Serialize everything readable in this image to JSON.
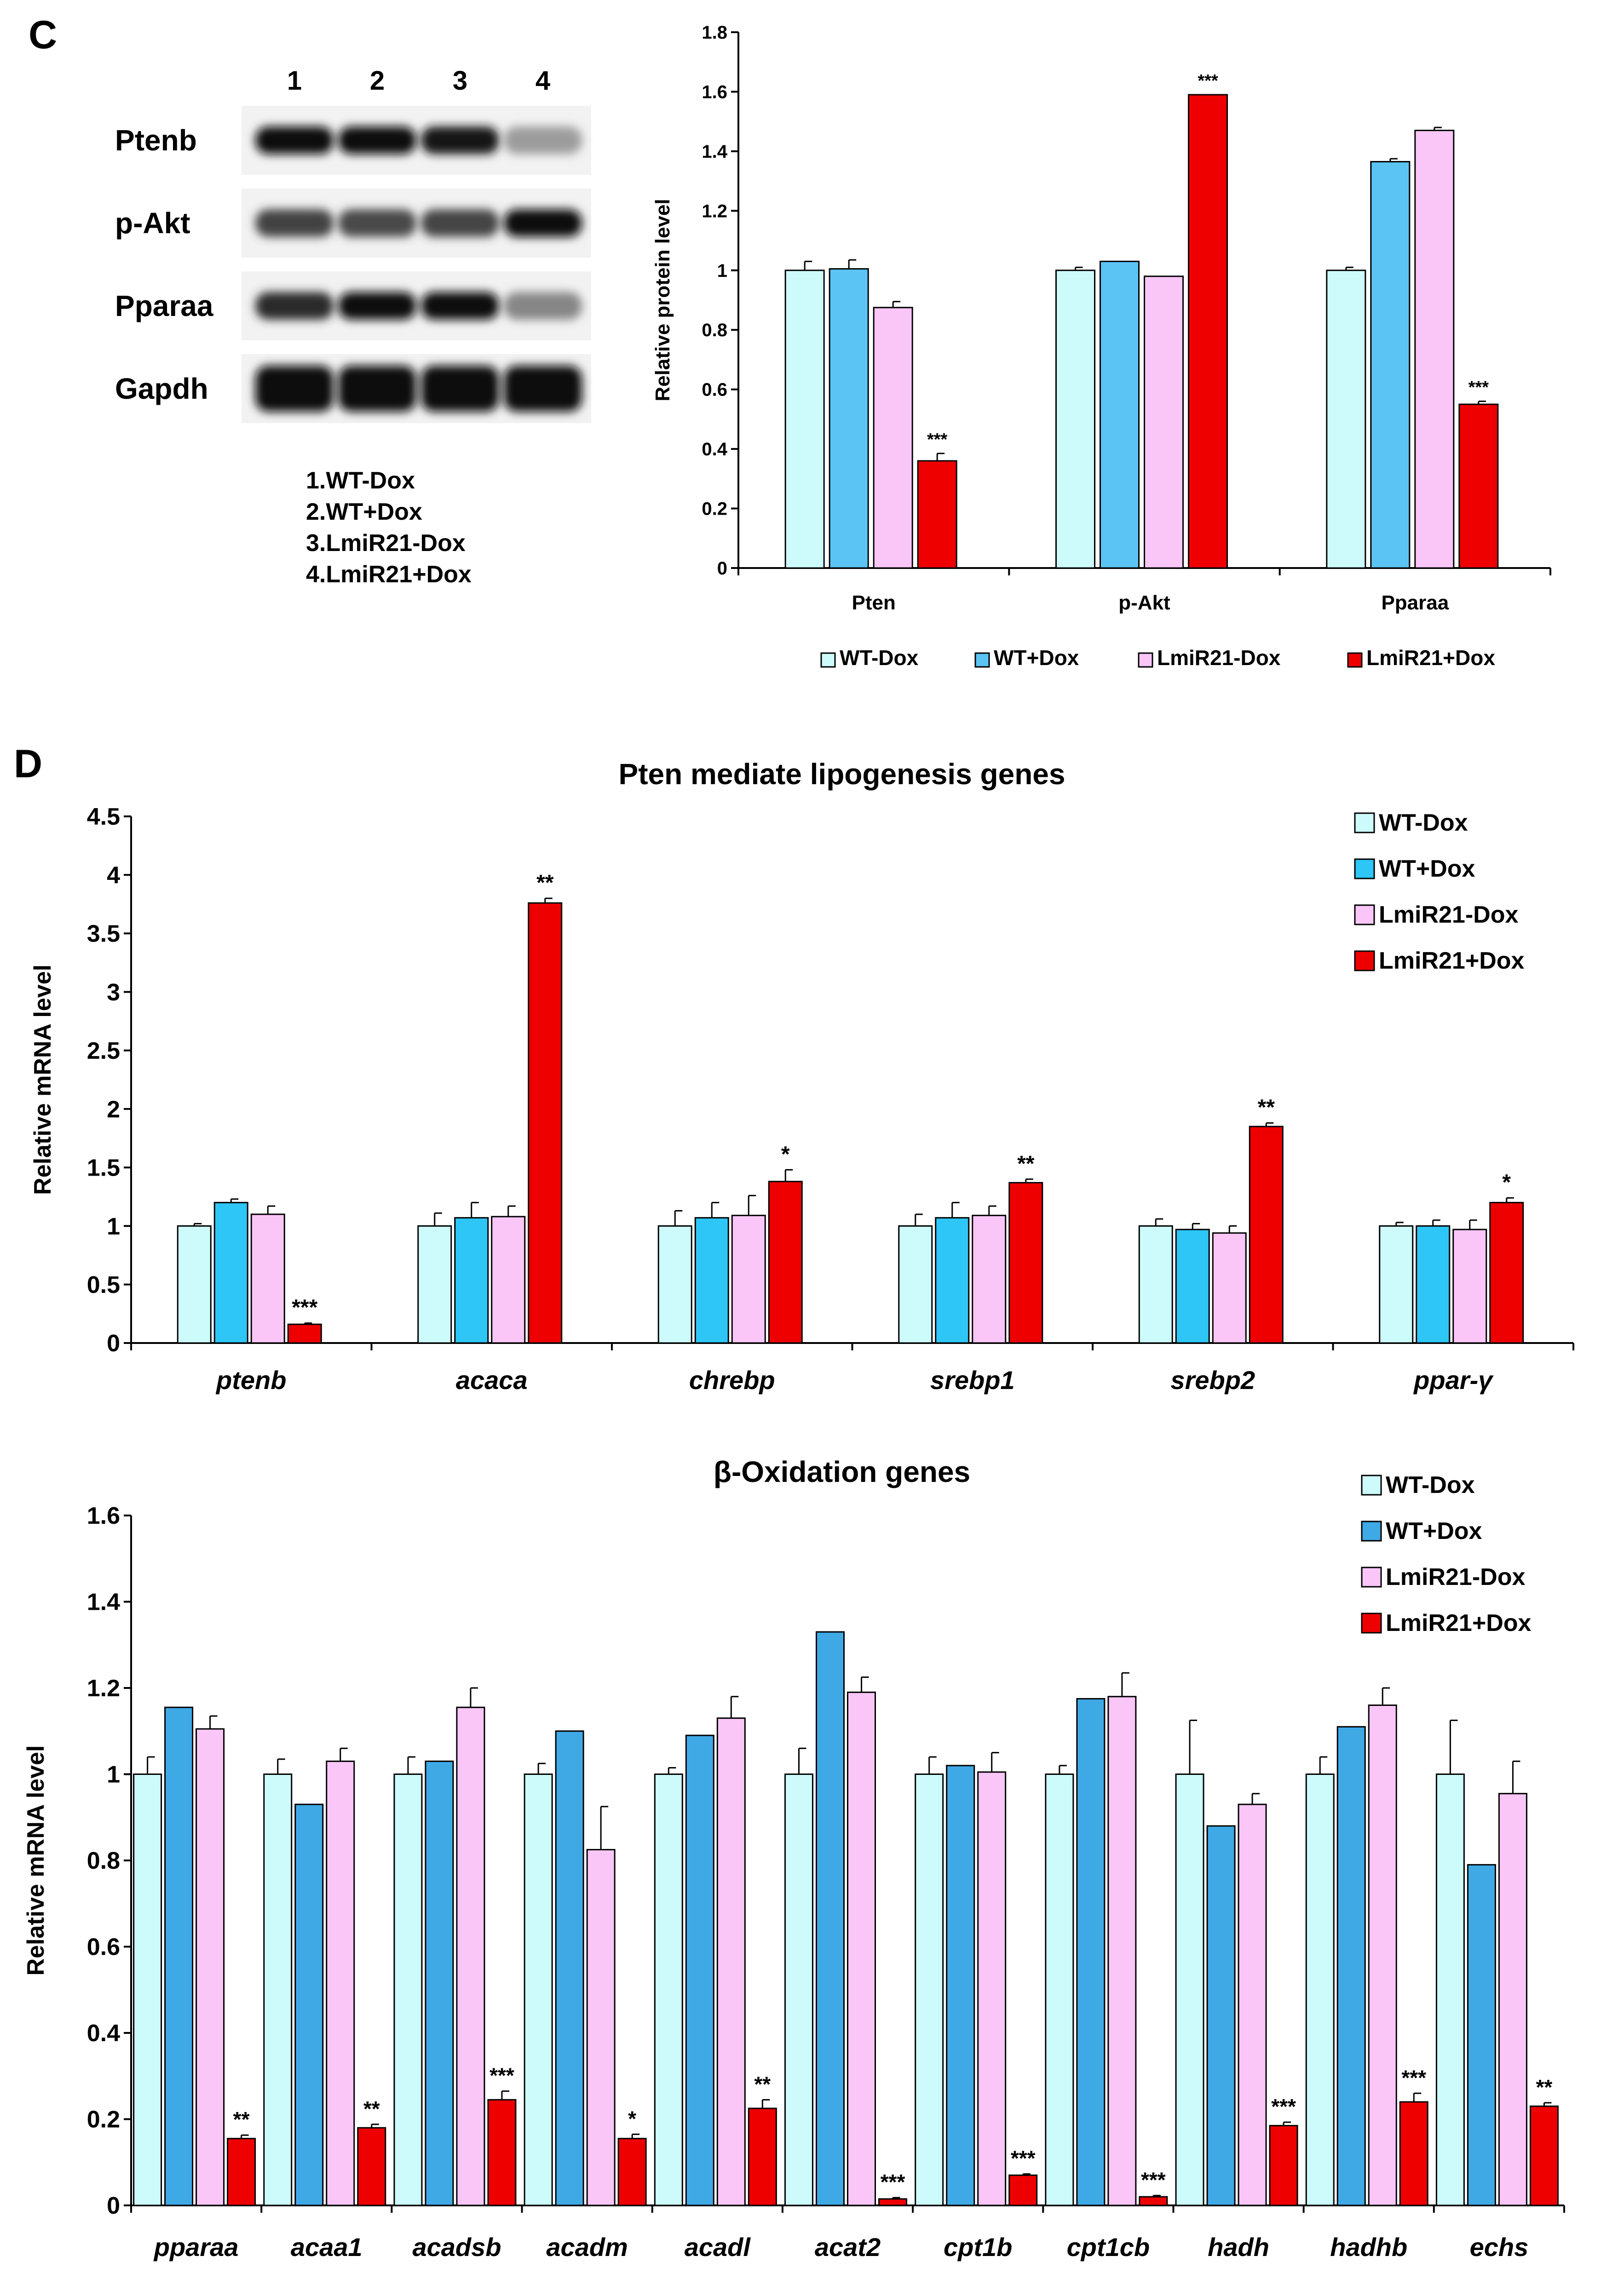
{
  "panelC": {
    "label": "C",
    "blot": {
      "lanes": [
        "1",
        "2",
        "3",
        "4"
      ],
      "rows": [
        {
          "name": "Ptenb",
          "intensity": [
            1.0,
            1.0,
            0.95,
            0.35
          ]
        },
        {
          "name": "p-Akt",
          "intensity": [
            0.75,
            0.72,
            0.74,
            1.0
          ]
        },
        {
          "name": "Pparaa",
          "intensity": [
            0.85,
            1.0,
            1.0,
            0.45
          ]
        },
        {
          "name": "Gapdh",
          "intensity": [
            1.0,
            1.0,
            1.0,
            1.0
          ]
        }
      ],
      "legend": [
        "1.WT-Dox",
        "2.WT+Dox",
        "3.LmiR21-Dox",
        "4.LmiR21+Dox"
      ]
    }
  },
  "panelD": {
    "label": "D"
  },
  "colors": {
    "s1": "#cdfbfb",
    "s2": "#5bc4f5",
    "s3": "#f9c6f7",
    "s4": "#ee0000",
    "s2b": "#2dc6f7",
    "s2c": "#3fa9e6"
  },
  "chart_data": [
    {
      "id": "protein",
      "type": "bar",
      "title": "",
      "ylabel": "Relative protein level",
      "ylim": [
        0,
        1.8
      ],
      "yticks": [
        "0",
        "0.2",
        "0.4",
        "0.6",
        "0.8",
        "1",
        "1.2",
        "1.4",
        "1.6",
        "1.8"
      ],
      "categories": [
        "Pten",
        "p-Akt",
        "Pparaa"
      ],
      "category_style": "normal",
      "series": [
        {
          "name": "WT-Dox",
          "values": [
            1.0,
            1.0,
            1.0
          ],
          "errors": [
            0.03,
            0.01,
            0.01
          ]
        },
        {
          "name": "WT+Dox",
          "values": [
            1.005,
            1.03,
            1.365
          ],
          "errors": [
            0.03,
            0.0,
            0.01
          ]
        },
        {
          "name": "LmiR21-Dox",
          "values": [
            0.875,
            0.98,
            1.47
          ],
          "errors": [
            0.02,
            0.0,
            0.01
          ]
        },
        {
          "name": "LmiR21+Dox",
          "values": [
            0.36,
            1.59,
            0.55
          ],
          "errors": [
            0.025,
            0.0,
            0.01
          ]
        }
      ],
      "significance": [
        "***",
        "***",
        "***"
      ],
      "legend": [
        "WT-Dox",
        "WT+Dox",
        "LmiR21-Dox",
        "LmiR21+Dox"
      ],
      "legend_position": "bottom"
    },
    {
      "id": "lipogenesis",
      "type": "bar",
      "title": "Pten mediate lipogenesis genes",
      "ylabel": "Relative mRNA level",
      "ylim": [
        0,
        4.5
      ],
      "yticks": [
        "0",
        "0.5",
        "1",
        "1.5",
        "2",
        "2.5",
        "3",
        "3.5",
        "4",
        "4.5"
      ],
      "categories": [
        "ptenb",
        "acaca",
        "chrebp",
        "srebp1",
        "srebp2",
        "ppar-γ"
      ],
      "category_style": "italic",
      "series": [
        {
          "name": "WT-Dox",
          "values": [
            1.0,
            1.0,
            1.0,
            1.0,
            1.0,
            1.0
          ],
          "errors": [
            0.02,
            0.11,
            0.13,
            0.1,
            0.06,
            0.03
          ]
        },
        {
          "name": "WT+Dox",
          "values": [
            1.2,
            1.07,
            1.07,
            1.07,
            0.97,
            1.0
          ],
          "errors": [
            0.03,
            0.13,
            0.13,
            0.13,
            0.05,
            0.05
          ]
        },
        {
          "name": "LmiR21-Dox",
          "values": [
            1.1,
            1.08,
            1.09,
            1.09,
            0.94,
            0.97
          ],
          "errors": [
            0.07,
            0.09,
            0.17,
            0.08,
            0.06,
            0.08
          ]
        },
        {
          "name": "LmiR21+Dox",
          "values": [
            0.16,
            3.76,
            1.38,
            1.37,
            1.85,
            1.2
          ],
          "errors": [
            0.01,
            0.04,
            0.1,
            0.03,
            0.03,
            0.04
          ]
        }
      ],
      "significance": [
        "***",
        "**",
        "*",
        "**",
        "**",
        "*"
      ],
      "legend": [
        "WT-Dox",
        "WT+Dox",
        "LmiR21-Dox",
        "LmiR21+Dox"
      ],
      "legend_position": "top-right"
    },
    {
      "id": "oxidation",
      "type": "bar",
      "title": "β-Oxidation genes",
      "ylabel": "Relative mRNA level",
      "ylim": [
        0,
        1.6
      ],
      "yticks": [
        "0",
        "0.2",
        "0.4",
        "0.6",
        "0.8",
        "1",
        "1.2",
        "1.4",
        "1.6"
      ],
      "categories": [
        "pparaa",
        "acaa1",
        "acadsb",
        "acadm",
        "acadl",
        "acat2",
        "cpt1b",
        "cpt1cb",
        "hadh",
        "hadhb",
        "echs"
      ],
      "category_style": "italic",
      "series": [
        {
          "name": "WT-Dox",
          "values": [
            1.0,
            1.0,
            1.0,
            1.0,
            1.0,
            1.0,
            1.0,
            1.0,
            1.0,
            1.0,
            1.0
          ],
          "errors": [
            0.04,
            0.035,
            0.04,
            0.025,
            0.015,
            0.06,
            0.04,
            0.02,
            0.125,
            0.04,
            0.125
          ]
        },
        {
          "name": "WT+Dox",
          "values": [
            1.155,
            0.93,
            1.03,
            1.1,
            1.09,
            1.33,
            1.02,
            1.175,
            0.88,
            1.11,
            0.79
          ]
        },
        {
          "name": "LmiR21-Dox",
          "values": [
            1.105,
            1.03,
            1.155,
            0.825,
            1.13,
            1.19,
            1.005,
            1.18,
            0.93,
            1.16,
            0.955
          ],
          "errors": [
            0.03,
            0.03,
            0.045,
            0.1,
            0.05,
            0.035,
            0.045,
            0.055,
            0.025,
            0.04,
            0.075
          ]
        },
        {
          "name": "LmiR21+Dox",
          "values": [
            0.155,
            0.18,
            0.245,
            0.155,
            0.225,
            0.015,
            0.07,
            0.02,
            0.185,
            0.24,
            0.23
          ],
          "errors": [
            0.008,
            0.008,
            0.02,
            0.01,
            0.02,
            0.003,
            0.003,
            0.003,
            0.008,
            0.02,
            0.008
          ]
        }
      ],
      "significance": [
        "**",
        "**",
        "***",
        "*",
        "**",
        "***",
        "***",
        "***",
        "***",
        "***",
        "**"
      ],
      "legend": [
        "WT-Dox",
        "WT+Dox",
        "LmiR21-Dox",
        "LmiR21+Dox"
      ],
      "legend_position": "top-right"
    }
  ]
}
